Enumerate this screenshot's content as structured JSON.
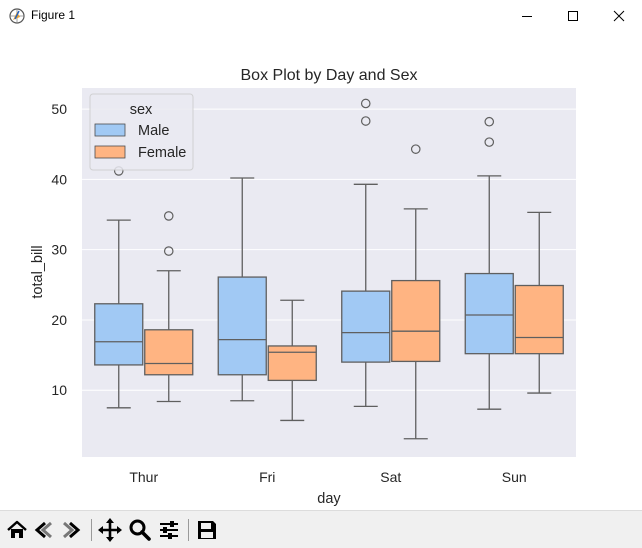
{
  "window": {
    "title": "Figure 1",
    "icons": [
      "app-icon",
      "minimize-icon",
      "maximize-icon",
      "close-icon"
    ]
  },
  "chart_data": {
    "type": "box",
    "title": "Box Plot by Day and Sex",
    "xlabel": "day",
    "ylabel": "total_bill",
    "categories": [
      "Thur",
      "Fri",
      "Sat",
      "Sun"
    ],
    "ylim": [
      0.5,
      53
    ],
    "yticks": [
      10,
      20,
      30,
      40,
      50
    ],
    "grid": true,
    "legend": {
      "title": "sex",
      "position": "top-left",
      "entries": [
        "Male",
        "Female"
      ]
    },
    "series": [
      {
        "name": "Male",
        "color": "#a1c9f4",
        "boxes": [
          {
            "low": 7.5,
            "q1": 13.6,
            "median": 16.9,
            "q3": 22.3,
            "high": 34.2,
            "outliers": [
              41.2
            ]
          },
          {
            "low": 8.5,
            "q1": 12.2,
            "median": 17.2,
            "q3": 26.1,
            "high": 40.2,
            "outliers": []
          },
          {
            "low": 7.7,
            "q1": 14.0,
            "median": 18.2,
            "q3": 24.1,
            "high": 39.3,
            "outliers": [
              48.3,
              50.8
            ]
          },
          {
            "low": 7.3,
            "q1": 15.2,
            "median": 20.7,
            "q3": 26.6,
            "high": 40.5,
            "outliers": [
              45.3,
              48.2
            ]
          }
        ]
      },
      {
        "name": "Female",
        "color": "#ffb482",
        "boxes": [
          {
            "low": 8.4,
            "q1": 12.2,
            "median": 13.8,
            "q3": 18.6,
            "high": 27.0,
            "outliers": [
              29.8,
              34.8
            ]
          },
          {
            "low": 5.7,
            "q1": 11.4,
            "median": 15.4,
            "q3": 16.3,
            "high": 22.8,
            "outliers": []
          },
          {
            "low": 3.1,
            "q1": 14.1,
            "median": 18.4,
            "q3": 25.6,
            "high": 35.8,
            "outliers": [
              44.3
            ]
          },
          {
            "low": 9.6,
            "q1": 15.2,
            "median": 17.5,
            "q3": 24.9,
            "high": 35.3,
            "outliers": []
          }
        ]
      }
    ]
  },
  "toolbar": {
    "tools": [
      "home-icon",
      "back-icon",
      "forward-icon",
      "pan-icon",
      "zoom-icon",
      "configure-subplots-icon",
      "save-icon"
    ]
  }
}
